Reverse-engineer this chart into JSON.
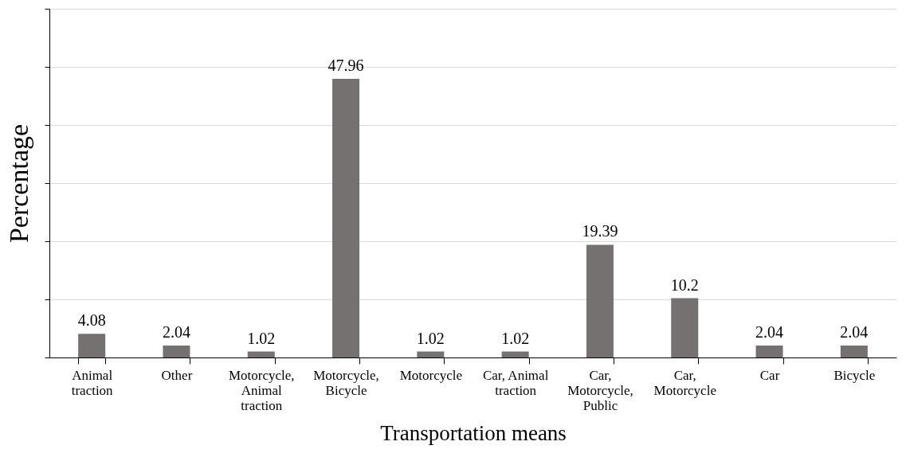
{
  "chart_data": {
    "type": "bar",
    "xlabel": "Transportation means",
    "ylabel": "Percentage",
    "categories": [
      "Animal traction",
      "Other",
      "Motorcycle, Animal traction",
      "Motorcycle, Bicycle",
      "Motorcycle",
      "Car, Animal traction",
      "Car, Motorcycle, Public",
      "Car, Motorcycle",
      "Car",
      "Bicycle"
    ],
    "values": [
      4.08,
      2.04,
      1.02,
      47.96,
      1.02,
      1.02,
      19.39,
      10.2,
      2.04,
      2.04
    ],
    "color": "#767171",
    "ylim": [
      0,
      60
    ],
    "yticks": [
      {
        "value": 0,
        "label": null
      },
      {
        "value": 10,
        "label": null
      },
      {
        "value": 20,
        "label": null
      },
      {
        "value": 30,
        "label": null
      },
      {
        "value": 40,
        "label": null
      },
      {
        "value": 50,
        "label": null
      },
      {
        "value": 60,
        "label": null
      }
    ],
    "grid": "y",
    "data_labels": true,
    "tick_labels": "x"
  }
}
